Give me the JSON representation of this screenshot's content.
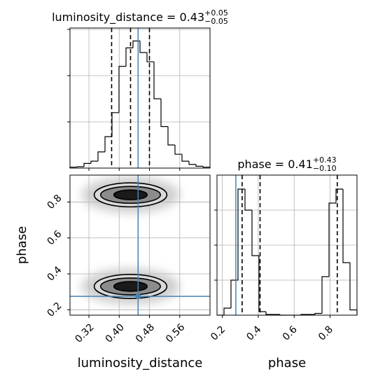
{
  "chart_data": {
    "type": "corner",
    "truth_color": "#4682b4",
    "parameters": [
      {
        "name": "luminosity_distance",
        "lim": [
          0.27,
          0.64
        ],
        "ticks": [
          0.32,
          {
            "value": 0.4,
            "label": "0.40"
          },
          0.48,
          0.56
        ],
        "truth": 0.45,
        "quantiles": [
          0.38,
          0.43,
          0.48
        ],
        "title": {
          "text": "luminosity_distance = 0.43",
          "sup": "+0.05",
          "sub": "−0.05"
        },
        "hist": {
          "bins": [
            0.27,
            0.2885,
            0.307,
            0.3255,
            0.344,
            0.3625,
            0.381,
            0.3995,
            0.418,
            0.4365,
            0.455,
            0.4735,
            0.492,
            0.5105,
            0.529,
            0.5475,
            0.566,
            0.5845,
            0.603,
            0.6215,
            0.64
          ],
          "counts": [
            0.02,
            0.03,
            0.1,
            0.15,
            0.35,
            0.68,
            1.2,
            2.2,
            2.6,
            2.75,
            2.5,
            2.3,
            1.5,
            0.9,
            0.5,
            0.3,
            0.15,
            0.08,
            0.04,
            0.02
          ],
          "ylim": [
            0,
            3.03
          ],
          "yticks": [
            1,
            2,
            3
          ]
        }
      },
      {
        "name": "phase",
        "lim": [
          0.17,
          0.95
        ],
        "ticks": [
          0.2,
          0.4,
          0.6,
          0.8
        ],
        "truth": 0.275,
        "quantiles": [
          0.31,
          0.41,
          0.84
        ],
        "title": {
          "text": "phase = 0.41",
          "sup": "+0.43",
          "sub": "−0.10"
        },
        "hist": {
          "bins": [
            0.17,
            0.209,
            0.248,
            0.287,
            0.326,
            0.365,
            0.404,
            0.443,
            0.482,
            0.521,
            0.56,
            0.599,
            0.638,
            0.677,
            0.716,
            0.755,
            0.794,
            0.833,
            0.872,
            0.911,
            0.95
          ],
          "counts": [
            0,
            0.2,
            1.0,
            3.6,
            3.0,
            1.7,
            0.1,
            0.02,
            0.02,
            0,
            0,
            0,
            0.02,
            0.02,
            0.05,
            1.1,
            3.2,
            3.6,
            1.5,
            0.15
          ],
          "ylim": [
            0,
            4
          ],
          "yticks": [
            1,
            2,
            3
          ]
        }
      }
    ],
    "density": {
      "fills": [
        "#d9d9d9",
        "#8c8c8c",
        "#1a1a1a"
      ],
      "blobs": [
        {
          "center": [
            0.43,
            0.84
          ],
          "levels": [
            [
              0.096,
              0.067
            ],
            [
              0.079,
              0.047
            ],
            [
              0.044,
              0.027
            ]
          ]
        },
        {
          "center": [
            0.43,
            0.33
          ],
          "levels": [
            [
              0.096,
              0.067
            ],
            [
              0.079,
              0.047
            ],
            [
              0.044,
              0.027
            ]
          ]
        }
      ]
    }
  }
}
